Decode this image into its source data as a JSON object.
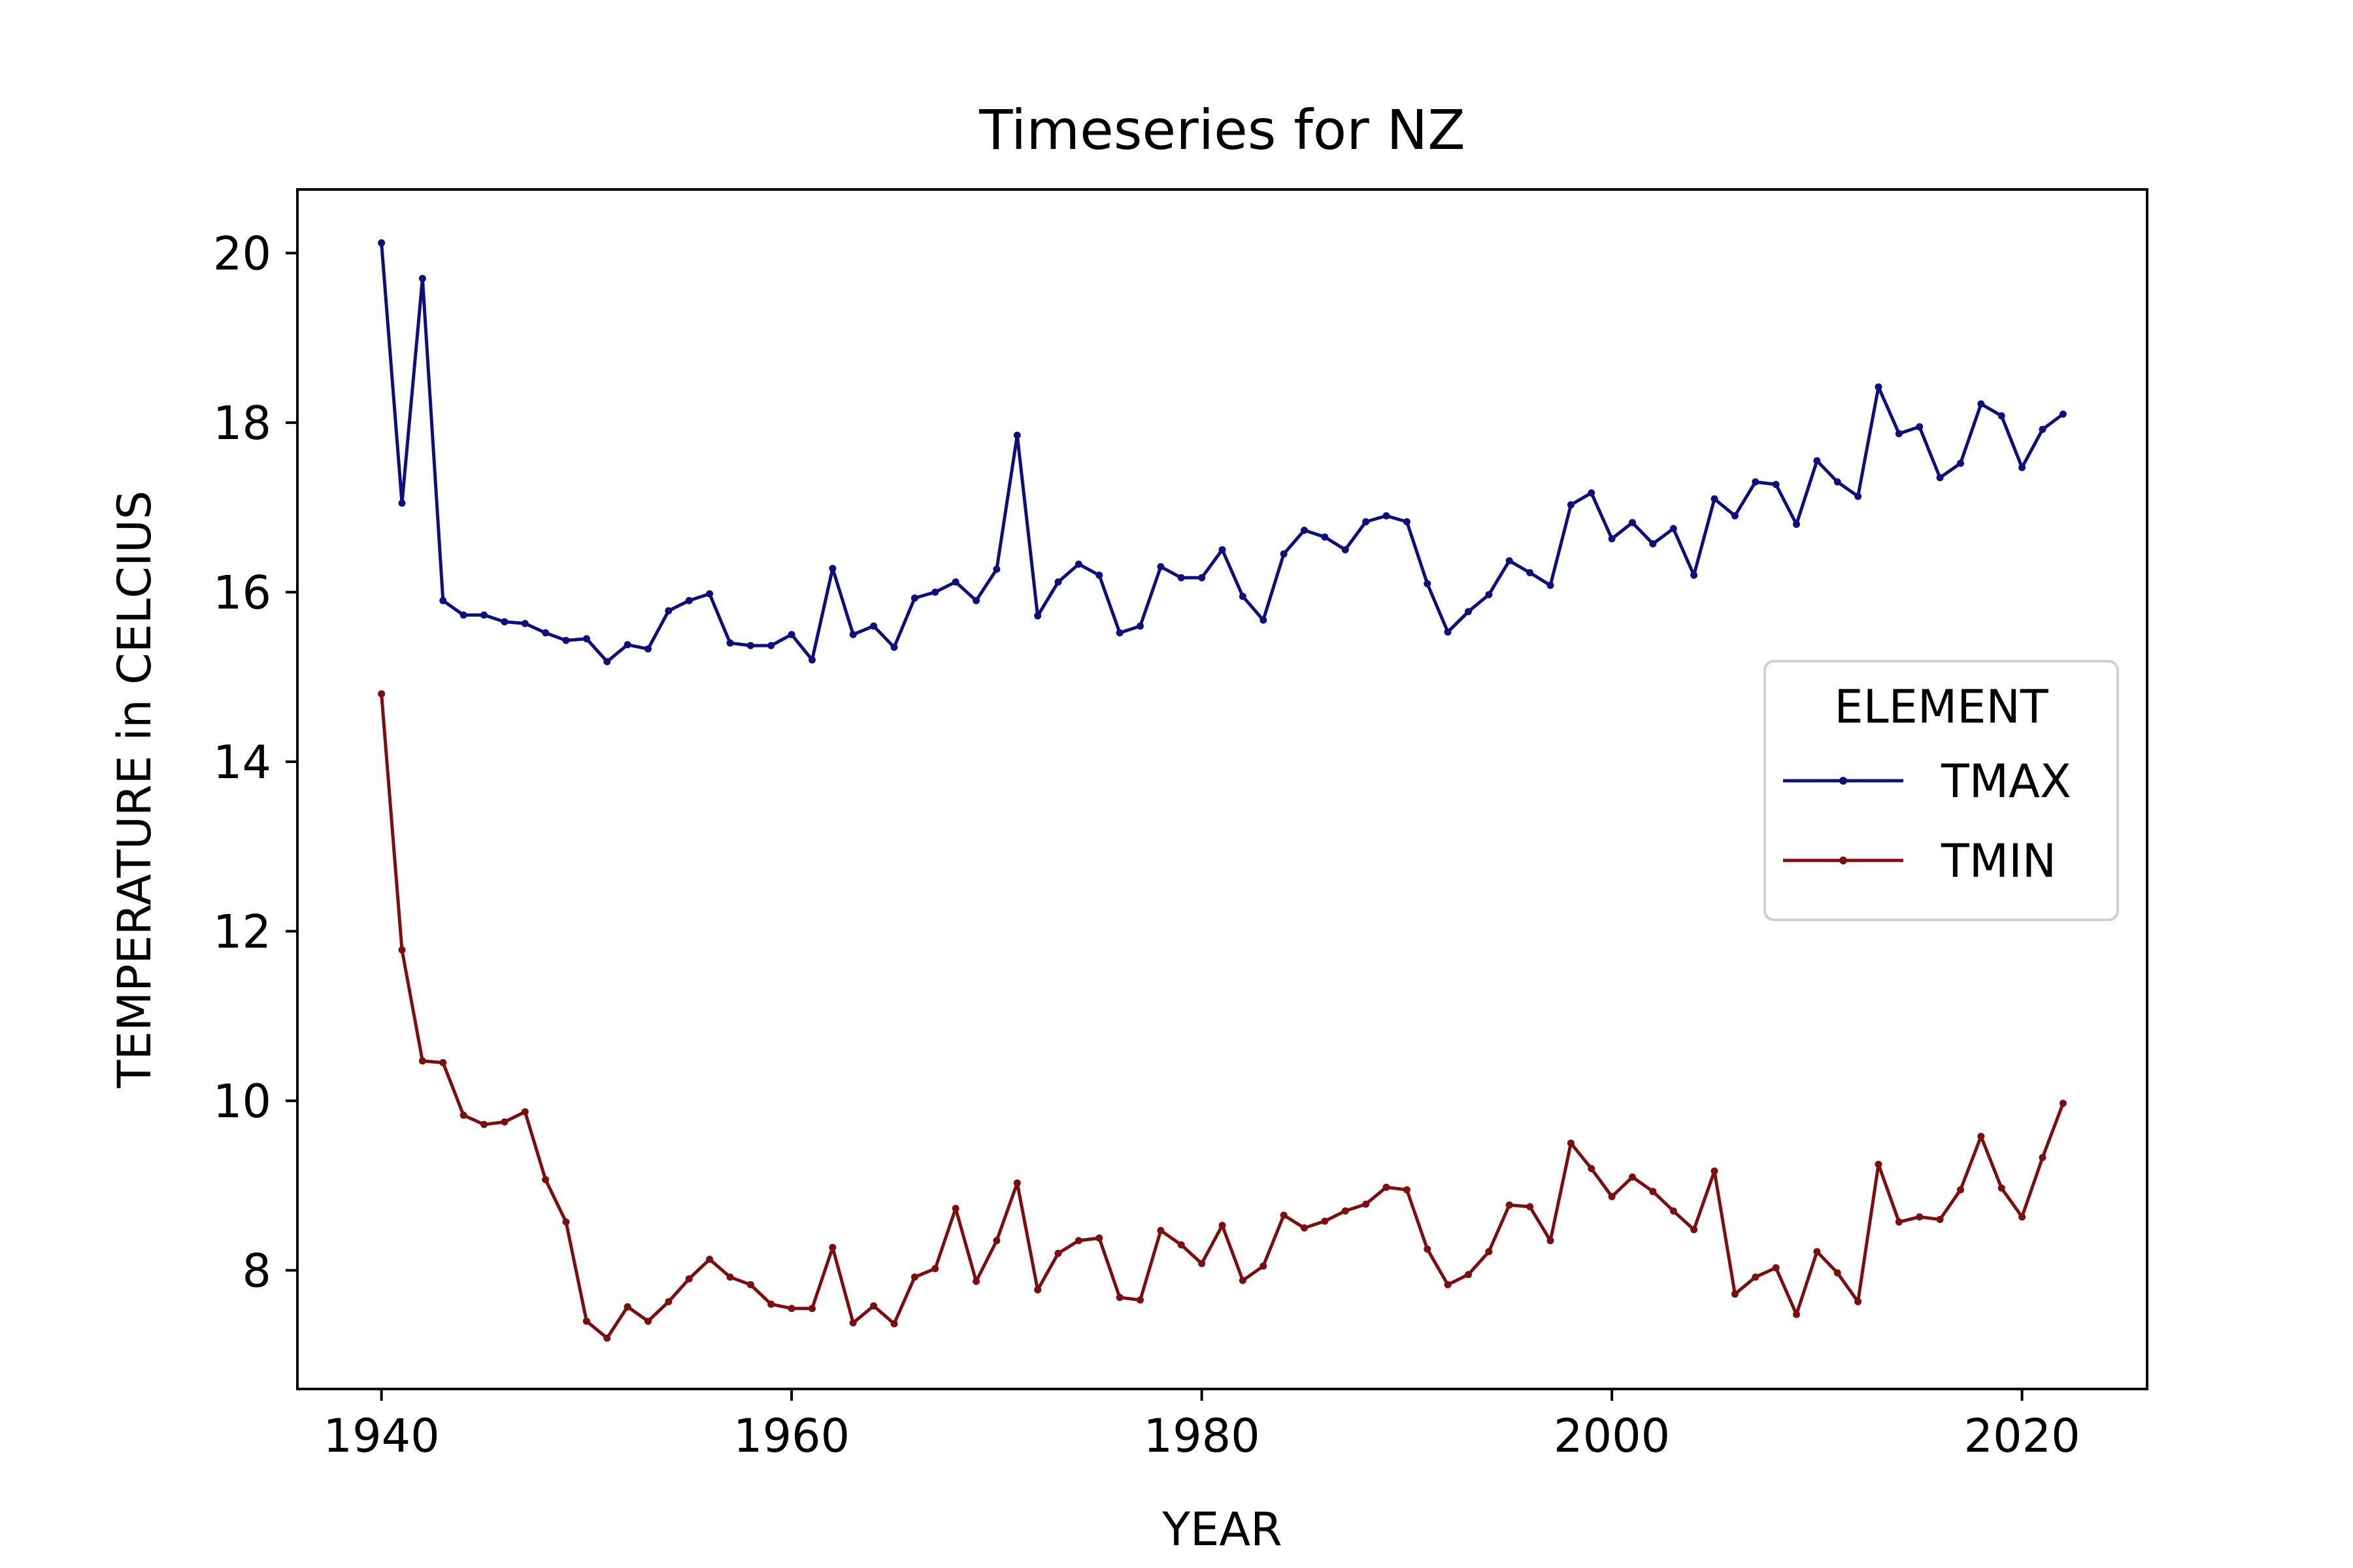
{
  "chart_data": {
    "type": "line",
    "title": "Timeseries for NZ",
    "xlabel": "YEAR",
    "ylabel": "TEMPERATURE in CELCIUS",
    "xlim": [
      1935.9,
      2026.1
    ],
    "ylim": [
      6.6,
      20.75
    ],
    "x_ticks": [
      1940,
      1960,
      1980,
      2000,
      2020
    ],
    "y_ticks": [
      8,
      10,
      12,
      14,
      16,
      18,
      20
    ],
    "grid": false,
    "legend": {
      "title": "ELEMENT",
      "placement": "center-right"
    },
    "x": [
      1940,
      1941,
      1942,
      1943,
      1944,
      1945,
      1946,
      1947,
      1948,
      1949,
      1950,
      1951,
      1952,
      1953,
      1954,
      1955,
      1956,
      1957,
      1958,
      1959,
      1960,
      1961,
      1962,
      1963,
      1964,
      1965,
      1966,
      1967,
      1968,
      1969,
      1970,
      1971,
      1972,
      1973,
      1974,
      1975,
      1976,
      1977,
      1978,
      1979,
      1980,
      1981,
      1982,
      1983,
      1984,
      1985,
      1986,
      1987,
      1988,
      1989,
      1990,
      1991,
      1992,
      1993,
      1994,
      1995,
      1996,
      1997,
      1998,
      1999,
      2000,
      2001,
      2002,
      2003,
      2004,
      2005,
      2006,
      2007,
      2008,
      2009,
      2010,
      2011,
      2012,
      2013,
      2014,
      2015,
      2016,
      2017,
      2018,
      2019,
      2020,
      2021,
      2022
    ],
    "series": [
      {
        "name": "TMAX",
        "color": "#0d0f80",
        "values": [
          20.12,
          17.05,
          19.7,
          15.9,
          15.73,
          15.73,
          15.65,
          15.63,
          15.52,
          15.43,
          15.45,
          15.18,
          15.38,
          15.33,
          15.78,
          15.9,
          15.98,
          15.4,
          15.37,
          15.37,
          15.5,
          15.2,
          16.28,
          15.5,
          15.6,
          15.35,
          15.93,
          16.0,
          16.12,
          15.9,
          16.27,
          17.85,
          15.72,
          16.12,
          16.33,
          16.2,
          15.52,
          15.6,
          16.3,
          16.17,
          16.17,
          16.5,
          15.95,
          15.67,
          16.45,
          16.73,
          16.65,
          16.5,
          16.83,
          16.9,
          16.83,
          16.1,
          15.53,
          15.77,
          15.97,
          16.37,
          16.23,
          16.08,
          17.03,
          17.17,
          16.63,
          16.82,
          16.57,
          16.75,
          16.2,
          17.1,
          16.9,
          17.3,
          17.27,
          16.8,
          17.55,
          17.3,
          17.13,
          18.42,
          17.87,
          17.95,
          17.35,
          17.52,
          18.22,
          18.08,
          17.47,
          17.92,
          18.1
        ]
      },
      {
        "name": "TMIN",
        "color": "#7e0d0d",
        "values": [
          14.8,
          11.78,
          10.47,
          10.45,
          9.83,
          9.72,
          9.75,
          9.87,
          9.07,
          8.57,
          7.4,
          7.2,
          7.57,
          7.4,
          7.63,
          7.9,
          8.13,
          7.92,
          7.83,
          7.6,
          7.55,
          7.55,
          8.27,
          7.38,
          7.58,
          7.37,
          7.92,
          8.02,
          8.73,
          7.87,
          8.35,
          9.03,
          7.77,
          8.2,
          8.35,
          8.38,
          7.68,
          7.65,
          8.47,
          8.3,
          8.08,
          8.53,
          7.88,
          8.05,
          8.65,
          8.5,
          8.58,
          8.7,
          8.78,
          8.98,
          8.95,
          8.25,
          7.83,
          7.95,
          8.22,
          8.77,
          8.75,
          8.35,
          9.5,
          9.2,
          8.87,
          9.1,
          8.93,
          8.7,
          8.48,
          9.17,
          7.72,
          7.92,
          8.03,
          7.48,
          8.22,
          7.97,
          7.63,
          9.25,
          8.57,
          8.63,
          8.6,
          8.95,
          9.58,
          8.97,
          8.63,
          9.33,
          9.97
        ]
      }
    ]
  }
}
